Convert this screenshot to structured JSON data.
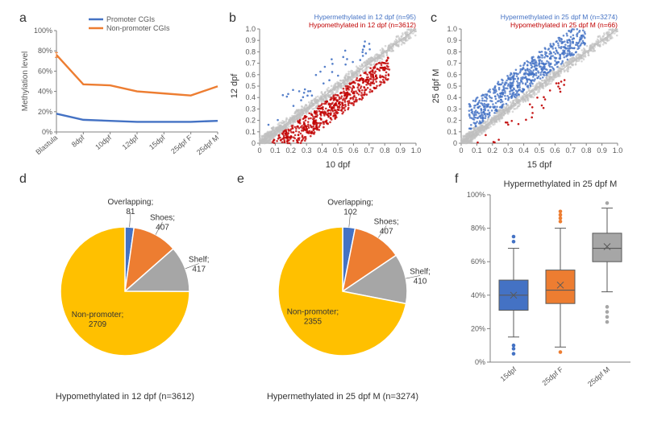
{
  "panel_a": {
    "label": "a",
    "type": "line",
    "y_axis_title": "Methylation level",
    "y_ticks": [
      "0%",
      "20%",
      "40%",
      "60%",
      "80%",
      "100%"
    ],
    "y_lim": [
      0,
      100
    ],
    "x_labels": [
      "Blastula",
      "8dpf",
      "10dpf",
      "12dpf",
      "15dpf",
      "25dpf F",
      "25dpf M"
    ],
    "series": [
      {
        "name": "Promoter CGIs",
        "color": "#4472c4",
        "values": [
          18,
          12,
          11,
          10,
          10,
          10,
          11
        ]
      },
      {
        "name": "Non-promoter CGIs",
        "color": "#ed7d31",
        "values": [
          76,
          47,
          46,
          40,
          38,
          36,
          45
        ]
      }
    ],
    "line_width": 2.4,
    "background_color": "#ffffff"
  },
  "panel_b": {
    "label": "b",
    "type": "scatter",
    "x_axis_title": "10 dpf",
    "y_axis_title": "12 dpf",
    "x_ticks": [
      "0",
      "0.1",
      "0.2",
      "0.3",
      "0.4",
      "0.5",
      "0.6",
      "0.7",
      "0.8",
      "0.9",
      "1.0"
    ],
    "y_ticks": [
      "0",
      "0.1",
      "0.2",
      "0.3",
      "0.4",
      "0.5",
      "0.6",
      "0.7",
      "0.8",
      "0.9",
      "1.0"
    ],
    "legend_top": {
      "text": "Hypermethylated in 12 dpf (n=95)",
      "color": "#4472c4"
    },
    "legend_bottom": {
      "text": "Hypomethylated in 12 dpf (n=3612)",
      "color": "#c00000"
    },
    "colors": {
      "gray": "#bfbfbf",
      "blue": "#4472c4",
      "red": "#c00000",
      "diag": "#a6a6a6"
    }
  },
  "panel_c": {
    "label": "c",
    "type": "scatter",
    "x_axis_title": "15 dpf",
    "y_axis_title": "25 dpf M",
    "x_ticks": [
      "0",
      "0.1",
      "0.2",
      "0.3",
      "0.4",
      "0.5",
      "0.6",
      "0.7",
      "0.8",
      "0.9",
      "1.0"
    ],
    "y_ticks": [
      "0",
      "0.1",
      "0.2",
      "0.3",
      "0.4",
      "0.5",
      "0.6",
      "0.7",
      "0.8",
      "0.9",
      "1.0"
    ],
    "legend_top": {
      "text": "Hypermethylated in 25 dpf M (n=3274)",
      "color": "#4472c4"
    },
    "legend_bottom": {
      "text": "Hypomethylated in 25 dpf M (n=66)",
      "color": "#c00000"
    },
    "colors": {
      "gray": "#bfbfbf",
      "blue": "#4472c4",
      "red": "#c00000",
      "diag": "#a6a6a6"
    }
  },
  "panel_d": {
    "label": "d",
    "type": "pie",
    "caption": "Hypomethylated in 12 dpf (n=3612)",
    "slices": [
      {
        "label": "Overlapping;",
        "value": 81,
        "color": "#4472c4"
      },
      {
        "label": "Shoes;",
        "value": 407,
        "color": "#ed7d31"
      },
      {
        "label": "Shelf;",
        "value": 417,
        "color": "#a6a6a6"
      },
      {
        "label": "Non-promoter;",
        "value": 2709,
        "color": "#ffc000"
      }
    ],
    "border_color": "#ffffff"
  },
  "panel_e": {
    "label": "e",
    "type": "pie",
    "caption": "Hypermethylated in 25 dpf M (n=3274)",
    "slices": [
      {
        "label": "Overlapping;",
        "value": 102,
        "color": "#4472c4"
      },
      {
        "label": "Shoes;",
        "value": 407,
        "color": "#ed7d31"
      },
      {
        "label": "Shelf;",
        "value": 410,
        "color": "#a6a6a6"
      },
      {
        "label": "Non-promoter;",
        "value": 2355,
        "color": "#ffc000"
      }
    ],
    "border_color": "#ffffff"
  },
  "panel_f": {
    "label": "f",
    "type": "boxplot",
    "title": "Hypermethylated in 25 dpf M",
    "y_axis_title": "",
    "y_ticks": [
      "0%",
      "20%",
      "40%",
      "60%",
      "80%",
      "100%"
    ],
    "y_lim": [
      0,
      100
    ],
    "categories": [
      "15dpf",
      "25dpf F",
      "25dpf M"
    ],
    "boxes": [
      {
        "color": "#4472c4",
        "q1": 31,
        "median": 40,
        "q3": 49,
        "whisker_low": 15,
        "whisker_high": 68,
        "mean": 40,
        "outliers": [
          10,
          8,
          5,
          72,
          75
        ]
      },
      {
        "color": "#ed7d31",
        "q1": 35,
        "median": 43,
        "q3": 55,
        "whisker_low": 9,
        "whisker_high": 80,
        "mean": 46,
        "outliers": [
          84,
          86,
          88,
          90,
          6
        ]
      },
      {
        "color": "#a6a6a6",
        "q1": 60,
        "median": 68,
        "q3": 77,
        "whisker_low": 42,
        "whisker_high": 92,
        "mean": 69,
        "outliers": [
          33,
          30,
          27,
          24,
          95
        ]
      }
    ],
    "border_color": "#595959",
    "grid_color": "#808080"
  }
}
